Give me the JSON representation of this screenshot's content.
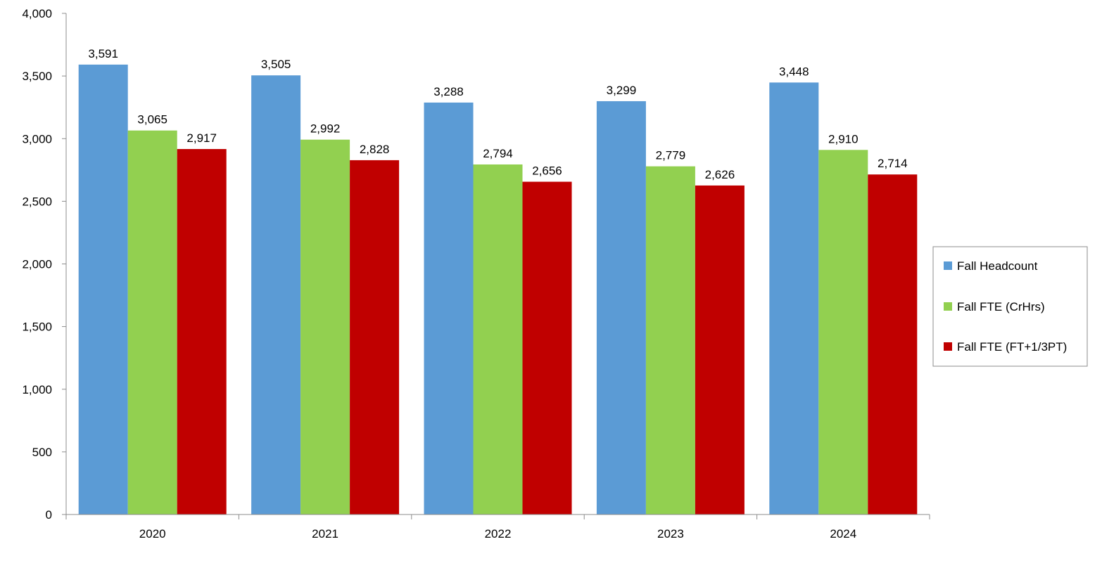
{
  "chart_data": {
    "type": "bar",
    "title": "",
    "xlabel": "",
    "ylabel": "",
    "categories": [
      "2020",
      "2021",
      "2022",
      "2023",
      "2024"
    ],
    "ylim": [
      0,
      4000
    ],
    "y_ticks": [
      0,
      500,
      1000,
      1500,
      2000,
      2500,
      3000,
      3500,
      4000
    ],
    "y_tick_labels": [
      "0",
      "500",
      "1,000",
      "1,500",
      "2,000",
      "2,500",
      "3,000",
      "3,500",
      "4,000"
    ],
    "grid": false,
    "legend_position": "right",
    "series": [
      {
        "name": "Fall Headcount",
        "color": "#5B9BD5",
        "values": [
          3591,
          3505,
          3288,
          3299,
          3448
        ],
        "labels": [
          "3,591",
          "3,505",
          "3,288",
          "3,299",
          "3,448"
        ]
      },
      {
        "name": "Fall FTE (CrHrs)",
        "color": "#92D050",
        "values": [
          3065,
          2992,
          2794,
          2779,
          2910
        ],
        "labels": [
          "3,065",
          "2,992",
          "2,794",
          "2,779",
          "2,910"
        ]
      },
      {
        "name": "Fall FTE (FT+1/3PT)",
        "color": "#C00000",
        "values": [
          2917,
          2828,
          2656,
          2626,
          2714
        ],
        "labels": [
          "2,917",
          "2,828",
          "2,656",
          "2,626",
          "2,714"
        ]
      }
    ]
  }
}
